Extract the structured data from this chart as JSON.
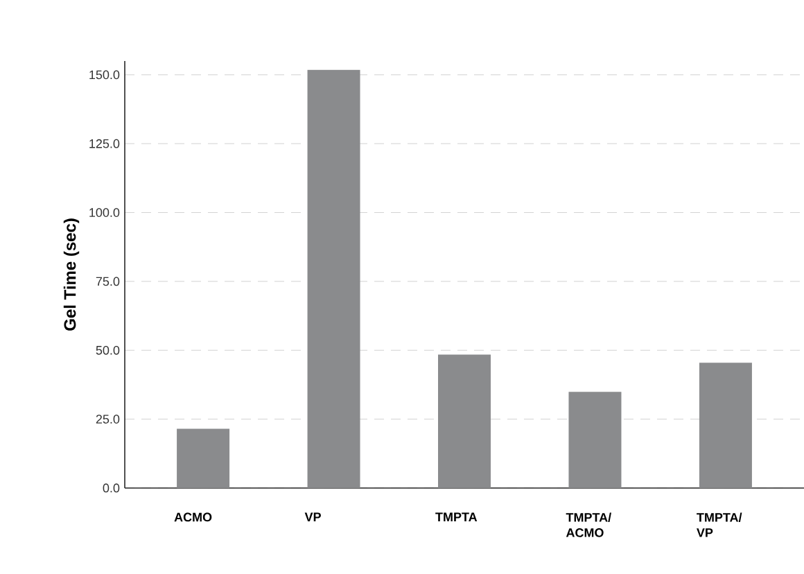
{
  "chart_data": {
    "type": "bar",
    "ylabel": "Gel Time (sec)",
    "categories": [
      "ACMO",
      "VP",
      "TMPTA",
      "TMPTA/ ACMO",
      "TMPTA/ VP"
    ],
    "values": [
      21.5,
      151.8,
      48.4,
      34.9,
      45.5
    ],
    "color": "#8a8b8d",
    "ylim": [
      0,
      155
    ],
    "yticks": [
      {
        "value": 0,
        "label": "0.0"
      },
      {
        "value": 25,
        "label": "25.0"
      },
      {
        "value": 50,
        "label": "50.0"
      },
      {
        "value": 75,
        "label": "75.0"
      },
      {
        "value": 100,
        "label": "100.0"
      },
      {
        "value": 125,
        "label": "125.0"
      },
      {
        "value": 150,
        "label": "150.0"
      }
    ],
    "grid": "y"
  }
}
